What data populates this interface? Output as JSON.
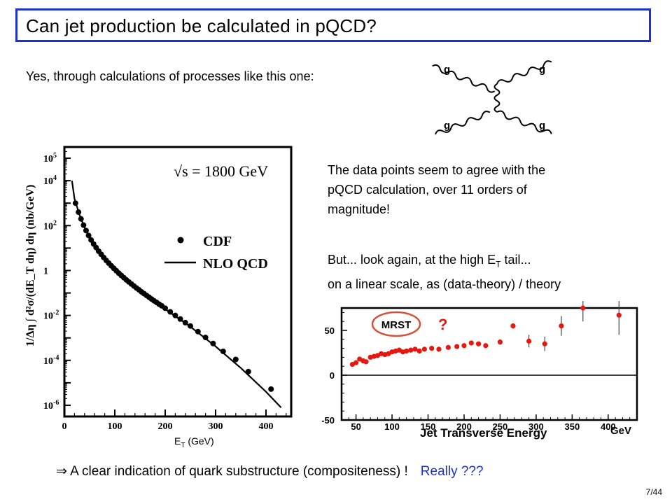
{
  "title": "Can jet production be calculated in pQCD?",
  "intro": "Yes, through calculations of processes like this one:",
  "feynman": {
    "labels": [
      "g",
      "g",
      "g",
      "g"
    ]
  },
  "agreement_lines": [
    "The data points seem to agree with the",
    "pQCD calculation, over 11 orders of",
    "magnitude!"
  ],
  "look_again": {
    "line1_prefix": "But... look again, at the high E",
    "line1_sub": "T",
    "line1_suffix": " tail...",
    "line2": "on a linear scale, as (data-theory) / theory"
  },
  "conclusion": {
    "arrow": "⇒",
    "text": " A clear indication of quark substructure (compositeness) !",
    "question": "Really ???"
  },
  "page_number": "7/44",
  "et_axis_caption": {
    "main": "E",
    "sub": "T",
    "rest": " (GeV)"
  },
  "chart_data": [
    {
      "type": "scatter",
      "y_scale": "log",
      "annotation": "√s = 1800 GeV",
      "ylabel": "1/Δη ∫ d²σ/(dE_T dη) dη   (nb/GeV)",
      "xlabel": "E_T (GeV)",
      "xlim": [
        0,
        450
      ],
      "ylim_exp": [
        -6.5,
        5.5
      ],
      "x_ticks": [
        "0",
        "100",
        "200",
        "300",
        "400"
      ],
      "y_ticks": [
        {
          "base": "10",
          "exp": "5",
          "v": 5
        },
        {
          "base": "10",
          "exp": "4",
          "v": 4
        },
        {
          "base": "10",
          "exp": "2",
          "v": 2
        },
        {
          "base": "1",
          "exp": "",
          "v": 0
        },
        {
          "base": "10",
          "exp": "-2",
          "v": -2
        },
        {
          "base": "10",
          "exp": "-4",
          "v": -4
        },
        {
          "base": "10",
          "exp": "-6",
          "v": -6
        }
      ],
      "legend": [
        {
          "name": "CDF",
          "marker": "dot"
        },
        {
          "name": "NLO QCD",
          "marker": "line"
        }
      ],
      "data_log10": [
        [
          22,
          3.0
        ],
        [
          28,
          2.6
        ],
        [
          33,
          2.3
        ],
        [
          38,
          2.02
        ],
        [
          43,
          1.78
        ],
        [
          48,
          1.56
        ],
        [
          53,
          1.36
        ],
        [
          58,
          1.18
        ],
        [
          63,
          1.02
        ],
        [
          68,
          0.86
        ],
        [
          73,
          0.72
        ],
        [
          78,
          0.58
        ],
        [
          83,
          0.45
        ],
        [
          88,
          0.33
        ],
        [
          93,
          0.21
        ],
        [
          98,
          0.1
        ],
        [
          103,
          -0.01
        ],
        [
          108,
          -0.12
        ],
        [
          113,
          -0.22
        ],
        [
          118,
          -0.32
        ],
        [
          123,
          -0.42
        ],
        [
          128,
          -0.51
        ],
        [
          133,
          -0.6
        ],
        [
          138,
          -0.69
        ],
        [
          143,
          -0.78
        ],
        [
          148,
          -0.86
        ],
        [
          153,
          -0.95
        ],
        [
          158,
          -1.03
        ],
        [
          163,
          -1.11
        ],
        [
          168,
          -1.19
        ],
        [
          173,
          -1.27
        ],
        [
          178,
          -1.35
        ],
        [
          183,
          -1.42
        ],
        [
          188,
          -1.5
        ],
        [
          193,
          -1.57
        ],
        [
          200,
          -1.68
        ],
        [
          210,
          -1.84
        ],
        [
          220,
          -2.0
        ],
        [
          230,
          -2.16
        ],
        [
          240,
          -2.32
        ],
        [
          250,
          -2.47
        ],
        [
          265,
          -2.72
        ],
        [
          280,
          -2.98
        ],
        [
          295,
          -3.25
        ],
        [
          315,
          -3.6
        ],
        [
          340,
          -3.96
        ],
        [
          365,
          -4.5
        ],
        [
          410,
          -5.28
        ]
      ],
      "theory_log10": [
        [
          15,
          4.0
        ],
        [
          20,
          3.2
        ],
        [
          30,
          2.48
        ],
        [
          40,
          1.92
        ],
        [
          50,
          1.46
        ],
        [
          60,
          1.1
        ],
        [
          80,
          0.5
        ],
        [
          100,
          0.04
        ],
        [
          120,
          -0.36
        ],
        [
          150,
          -0.92
        ],
        [
          200,
          -1.72
        ],
        [
          250,
          -2.5
        ],
        [
          300,
          -3.38
        ],
        [
          350,
          -4.34
        ],
        [
          400,
          -5.4
        ],
        [
          430,
          -6.1
        ]
      ]
    },
    {
      "type": "scatter",
      "xlabel": "Jet Transverse Energy",
      "x_unit": "GeV",
      "xlim": [
        30,
        440
      ],
      "ylim": [
        -50,
        75
      ],
      "x_ticks": [
        50,
        100,
        150,
        200,
        250,
        300,
        350,
        400
      ],
      "y_ticks": [
        50,
        0,
        -50
      ],
      "annotation": "MRST",
      "question_mark": "?",
      "points": [
        {
          "x": 45,
          "y": 12
        },
        {
          "x": 50,
          "y": 14
        },
        {
          "x": 55,
          "y": 18
        },
        {
          "x": 60,
          "y": 16
        },
        {
          "x": 64,
          "y": 15
        },
        {
          "x": 70,
          "y": 20
        },
        {
          "x": 75,
          "y": 21
        },
        {
          "x": 80,
          "y": 22
        },
        {
          "x": 85,
          "y": 24
        },
        {
          "x": 90,
          "y": 23
        },
        {
          "x": 95,
          "y": 24
        },
        {
          "x": 100,
          "y": 26
        },
        {
          "x": 105,
          "y": 27
        },
        {
          "x": 110,
          "y": 28
        },
        {
          "x": 115,
          "y": 26
        },
        {
          "x": 120,
          "y": 27
        },
        {
          "x": 126,
          "y": 28
        },
        {
          "x": 132,
          "y": 29
        },
        {
          "x": 138,
          "y": 27
        },
        {
          "x": 145,
          "y": 29
        },
        {
          "x": 155,
          "y": 30
        },
        {
          "x": 165,
          "y": 29
        },
        {
          "x": 178,
          "y": 31
        },
        {
          "x": 190,
          "y": 32
        },
        {
          "x": 200,
          "y": 33
        },
        {
          "x": 210,
          "y": 36
        },
        {
          "x": 220,
          "y": 35
        },
        {
          "x": 230,
          "y": 33
        },
        {
          "x": 250,
          "y": 37,
          "e": 3
        },
        {
          "x": 268,
          "y": 55,
          "e": 3
        },
        {
          "x": 290,
          "y": 38,
          "e": 7
        },
        {
          "x": 312,
          "y": 35,
          "e": 8
        },
        {
          "x": 335,
          "y": 55,
          "e": 11
        },
        {
          "x": 365,
          "y": 75,
          "e": 15
        },
        {
          "x": 415,
          "y": 67,
          "e": 22
        }
      ]
    }
  ]
}
